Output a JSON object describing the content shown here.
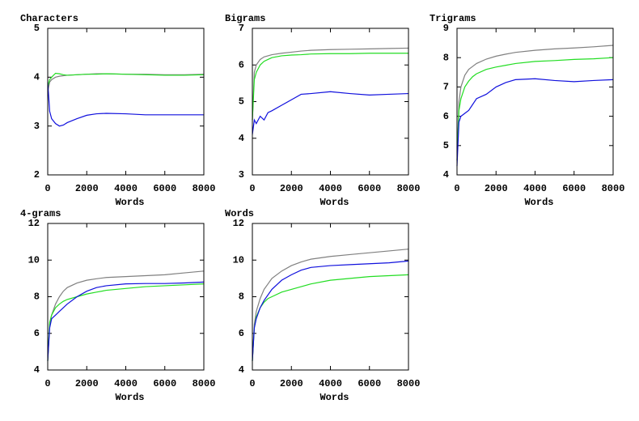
{
  "chart_data": [
    {
      "type": "line",
      "title": "Characters",
      "xlabel": "Words",
      "x": [
        0,
        100,
        200,
        400,
        600,
        800,
        1000,
        1500,
        2000,
        2500,
        3000,
        4000,
        5000,
        6000,
        7000,
        8000
      ],
      "xlim": [
        0,
        8000
      ],
      "xticks": [
        0,
        2000,
        4000,
        6000,
        8000
      ],
      "ylim": [
        2,
        5
      ],
      "yticks": [
        2,
        3,
        4,
        5
      ],
      "series": [
        {
          "color": "#808080",
          "values": [
            3.7,
            3.9,
            3.95,
            4.0,
            4.02,
            4.03,
            4.04,
            4.05,
            4.06,
            4.07,
            4.07,
            4.06,
            4.06,
            4.05,
            4.05,
            4.06
          ]
        },
        {
          "color": "#22dd22",
          "values": [
            3.8,
            3.95,
            4.0,
            4.08,
            4.07,
            4.05,
            4.04,
            4.05,
            4.06,
            4.06,
            4.07,
            4.06,
            4.05,
            4.04,
            4.04,
            4.05
          ]
        },
        {
          "color": "#1010dd",
          "values": [
            3.9,
            3.3,
            3.15,
            3.05,
            3.0,
            3.02,
            3.07,
            3.15,
            3.22,
            3.25,
            3.26,
            3.25,
            3.23,
            3.23,
            3.23,
            3.23
          ]
        }
      ]
    },
    {
      "type": "line",
      "title": "Bigrams",
      "xlabel": "Words",
      "x": [
        0,
        100,
        200,
        400,
        600,
        800,
        1000,
        1500,
        2000,
        2500,
        3000,
        4000,
        5000,
        6000,
        7000,
        8000
      ],
      "xlim": [
        0,
        8000
      ],
      "xticks": [
        0,
        2000,
        4000,
        6000,
        8000
      ],
      "ylim": [
        3,
        7
      ],
      "yticks": [
        3,
        4,
        5,
        6,
        7
      ],
      "series": [
        {
          "color": "#808080",
          "values": [
            4.5,
            5.8,
            6.0,
            6.15,
            6.22,
            6.25,
            6.28,
            6.32,
            6.35,
            6.38,
            6.4,
            6.42,
            6.43,
            6.44,
            6.45,
            6.46
          ]
        },
        {
          "color": "#22dd22",
          "values": [
            4.5,
            5.6,
            5.8,
            6.0,
            6.1,
            6.15,
            6.2,
            6.25,
            6.27,
            6.28,
            6.3,
            6.31,
            6.31,
            6.32,
            6.32,
            6.32
          ]
        },
        {
          "color": "#1010dd",
          "values": [
            4.1,
            4.5,
            4.4,
            4.6,
            4.5,
            4.7,
            4.75,
            4.9,
            5.05,
            5.2,
            5.22,
            5.27,
            5.22,
            5.18,
            5.2,
            5.22
          ]
        }
      ]
    },
    {
      "type": "line",
      "title": "Trigrams",
      "xlabel": "Words",
      "x": [
        0,
        100,
        200,
        400,
        600,
        800,
        1000,
        1500,
        2000,
        2500,
        3000,
        4000,
        5000,
        6000,
        7000,
        8000
      ],
      "xlim": [
        0,
        8000
      ],
      "xticks": [
        0,
        2000,
        4000,
        6000,
        8000
      ],
      "ylim": [
        4,
        9
      ],
      "yticks": [
        4,
        5,
        6,
        7,
        8,
        9
      ],
      "series": [
        {
          "color": "#808080",
          "values": [
            4.5,
            6.5,
            7.0,
            7.4,
            7.6,
            7.7,
            7.8,
            7.95,
            8.05,
            8.12,
            8.18,
            8.25,
            8.3,
            8.33,
            8.37,
            8.42
          ]
        },
        {
          "color": "#22dd22",
          "values": [
            4.5,
            6.2,
            6.6,
            7.0,
            7.2,
            7.35,
            7.45,
            7.6,
            7.68,
            7.74,
            7.8,
            7.87,
            7.9,
            7.94,
            7.96,
            8.0
          ]
        },
        {
          "color": "#1010dd",
          "values": [
            4.3,
            5.8,
            6.0,
            6.1,
            6.2,
            6.4,
            6.6,
            6.75,
            7.0,
            7.15,
            7.25,
            7.28,
            7.22,
            7.18,
            7.22,
            7.25
          ]
        }
      ]
    },
    {
      "type": "line",
      "title": "4-grams",
      "xlabel": "Words",
      "x": [
        0,
        100,
        200,
        400,
        600,
        800,
        1000,
        1500,
        2000,
        2500,
        3000,
        4000,
        5000,
        6000,
        7000,
        8000
      ],
      "xlim": [
        0,
        8000
      ],
      "xticks": [
        0,
        2000,
        4000,
        6000,
        8000
      ],
      "ylim": [
        4,
        12
      ],
      "yticks": [
        4,
        6,
        8,
        10,
        12
      ],
      "series": [
        {
          "color": "#808080",
          "values": [
            4.5,
            6.5,
            7.0,
            7.6,
            8.0,
            8.3,
            8.5,
            8.75,
            8.9,
            8.98,
            9.05,
            9.1,
            9.15,
            9.2,
            9.3,
            9.4
          ]
        },
        {
          "color": "#22dd22",
          "values": [
            4.5,
            6.6,
            7.0,
            7.4,
            7.6,
            7.75,
            7.85,
            8.0,
            8.15,
            8.25,
            8.35,
            8.45,
            8.55,
            8.6,
            8.65,
            8.7
          ]
        },
        {
          "color": "#1010dd",
          "values": [
            4.5,
            6.3,
            6.8,
            7.0,
            7.2,
            7.4,
            7.6,
            8.0,
            8.3,
            8.5,
            8.6,
            8.7,
            8.72,
            8.72,
            8.75,
            8.8
          ]
        }
      ]
    },
    {
      "type": "line",
      "title": "Words",
      "xlabel": "Words",
      "x": [
        0,
        100,
        200,
        400,
        600,
        800,
        1000,
        1500,
        2000,
        2500,
        3000,
        4000,
        5000,
        6000,
        7000,
        8000
      ],
      "xlim": [
        0,
        8000
      ],
      "xticks": [
        0,
        2000,
        4000,
        6000,
        8000
      ],
      "ylim": [
        4,
        12
      ],
      "yticks": [
        4,
        6,
        8,
        10,
        12
      ],
      "series": [
        {
          "color": "#808080",
          "values": [
            4.5,
            6.5,
            7.2,
            7.9,
            8.4,
            8.7,
            9.0,
            9.4,
            9.7,
            9.9,
            10.05,
            10.2,
            10.3,
            10.4,
            10.5,
            10.6
          ]
        },
        {
          "color": "#22dd22",
          "values": [
            4.5,
            6.3,
            6.9,
            7.4,
            7.7,
            7.9,
            8.0,
            8.25,
            8.4,
            8.55,
            8.7,
            8.9,
            9.0,
            9.1,
            9.15,
            9.2
          ]
        },
        {
          "color": "#1010dd",
          "values": [
            4.5,
            6.3,
            6.8,
            7.4,
            7.8,
            8.1,
            8.4,
            8.9,
            9.2,
            9.45,
            9.6,
            9.7,
            9.75,
            9.8,
            9.85,
            9.95
          ]
        }
      ]
    }
  ]
}
